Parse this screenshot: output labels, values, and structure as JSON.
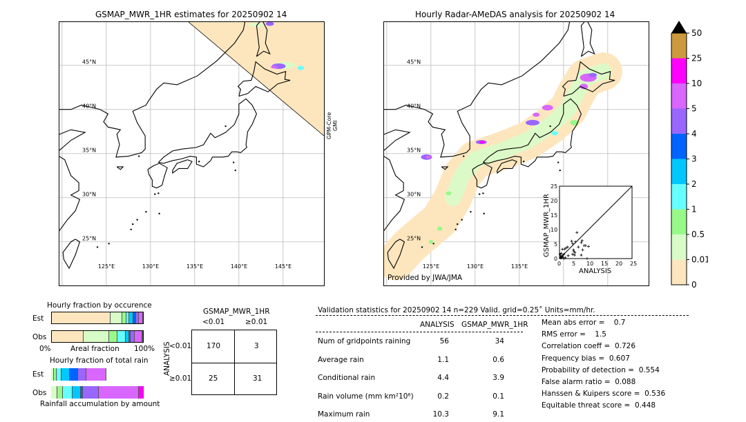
{
  "left_map": {
    "title": "GSMAP_MWR_1HR estimates for 20250902 14",
    "swath_label": "GPM-Core\nGMI",
    "lat_labels": [
      "45°N",
      "40°N",
      "35°N",
      "30°N",
      "25°N"
    ],
    "lon_labels": [
      "125°E",
      "130°E",
      "135°E",
      "140°E",
      "145°E"
    ]
  },
  "right_map": {
    "title": "Hourly Radar-AMeDAS analysis for 20250902 14",
    "credit": "Provided by JWA/JMA",
    "lat_labels": [
      "45°N",
      "40°N",
      "35°N",
      "30°N",
      "25°N"
    ],
    "lon_labels": [
      "125°E",
      "130°E",
      "135°E"
    ]
  },
  "scatter": {
    "xlabel": "ANALYSIS",
    "ylabel": "GSMAP_MWR_1HR",
    "ticks": [
      "0",
      "5",
      "10",
      "15",
      "20",
      "25"
    ],
    "range": [
      0,
      25
    ],
    "points": [
      [
        0.3,
        0.2
      ],
      [
        0.5,
        0.5
      ],
      [
        0.8,
        0.3
      ],
      [
        1,
        1
      ],
      [
        1.2,
        0.5
      ],
      [
        1.5,
        1.5
      ],
      [
        0.2,
        1.5
      ],
      [
        0.6,
        1.8
      ],
      [
        1.8,
        3.3
      ],
      [
        2.2,
        3.6
      ],
      [
        2.8,
        4
      ],
      [
        1,
        3.2
      ],
      [
        2,
        0.3
      ],
      [
        3,
        1
      ],
      [
        4.2,
        6
      ],
      [
        4.5,
        5.2
      ],
      [
        4.8,
        3
      ],
      [
        5,
        2.5
      ],
      [
        5.3,
        2
      ],
      [
        5.5,
        5.8
      ],
      [
        6,
        9
      ],
      [
        6.5,
        4
      ],
      [
        7.5,
        5.5
      ],
      [
        7.8,
        6.2
      ],
      [
        8,
        3
      ],
      [
        8.5,
        4.5
      ],
      [
        9,
        4.5
      ],
      [
        10,
        4.2
      ],
      [
        7.5,
        1.2
      ],
      [
        9.5,
        0
      ],
      [
        4.5,
        1.5
      ],
      [
        5.2,
        1.2
      ],
      [
        1.5,
        0
      ],
      [
        0.4,
        0.9
      ]
    ]
  },
  "colorbar": {
    "labels": [
      "0",
      "0.01",
      "0.5",
      "1",
      "2",
      "3",
      "4",
      "5",
      "10",
      "25",
      "50"
    ],
    "colors": [
      "#fde6be",
      "#d8fcc8",
      "#98f98a",
      "#66ffff",
      "#00c8ff",
      "#0064ff",
      "#9966ff",
      "#d966ff",
      "#ff00ff",
      "#cc9a3c"
    ]
  },
  "occurrence": {
    "title": "Hourly fraction by occurence",
    "est_label": "Est",
    "obs_label": "Obs",
    "axis_left": "0%",
    "axis_mid": "Areal fraction",
    "axis_right": "100%",
    "est": [
      0.68,
      0.127,
      0.037,
      0.03,
      0.037,
      0.022,
      0.03,
      0.037
    ],
    "obs": [
      0.366,
      0.29,
      0.09,
      0.09,
      0.03,
      0.01,
      0.045,
      0.075,
      0.004
    ]
  },
  "rainfrac": {
    "title": "Hourly fraction of total rain",
    "est_label": "Est",
    "obs_label": "Obs",
    "footer": "Rainfall accumulation by amount",
    "est": [
      0.022,
      0.022,
      0.045,
      0.082,
      0.082,
      0.082,
      0.21
    ],
    "obs": [
      0.06,
      0.06,
      0.104,
      0.082,
      0.015,
      0.172,
      0.455,
      0.045
    ]
  },
  "contingency": {
    "title": "GSMAP_MWR_1HR",
    "col1": "<0.01",
    "col2": "≥0.01",
    "row_axis": "ANALYSIS",
    "row1": "<0.01",
    "row2": "≥0.01",
    "cells": [
      "170",
      "3",
      "25",
      "31"
    ]
  },
  "stats": {
    "header": "Validation statistics for 20250902 14  n=229 Valid. grid=0.25˚ Units=mm/hr.",
    "col_a": "ANALYSIS",
    "col_b": "GSMAP_MWR_1HR",
    "rows": [
      {
        "label": "Num of gridpoints raining",
        "a": "56",
        "b": "34"
      },
      {
        "label": "Average rain",
        "a": "1.1",
        "b": "0.6"
      },
      {
        "label": "Conditional rain",
        "a": "4.4",
        "b": "3.9"
      },
      {
        "label": "Rain volume (mm km²10⁶)",
        "a": "0.2",
        "b": "0.1"
      },
      {
        "label": "Maximum rain",
        "a": "10.3",
        "b": "9.1"
      }
    ],
    "scores": [
      "Mean abs error =    0.7",
      "RMS error =    1.5",
      "Correlation coeff =  0.726",
      "Frequency bias =  0.607",
      "Probability of detection =  0.554",
      "False alarm ratio =  0.088",
      "Hanssen & Kuipers score =  0.536",
      "Equitable threat score =  0.448"
    ]
  }
}
